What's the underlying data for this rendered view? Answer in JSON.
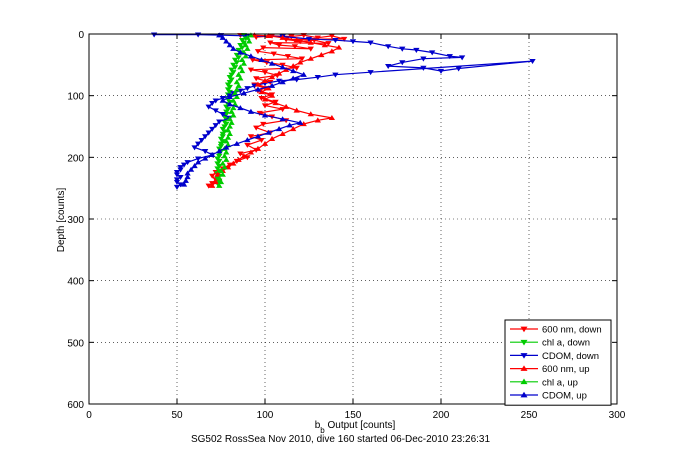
{
  "caption": "SG502 RossSea Nov 2010, dive 160 started 06-Dec-2010 23:26:31",
  "chart_data": {
    "type": "scatter",
    "title": "",
    "xlabel": "b_b Output [counts]",
    "ylabel": "Depth [counts]",
    "xlim": [
      0,
      300
    ],
    "ylim": [
      0,
      600
    ],
    "y_reversed": true,
    "xticks": [
      0,
      50,
      100,
      150,
      200,
      250,
      300
    ],
    "yticks": [
      0,
      100,
      200,
      300,
      400,
      500,
      600
    ],
    "grid": true,
    "grid_style": "dotted",
    "legend_position": "bottom-right",
    "series": [
      {
        "name": "600 nm, down",
        "color": "#ff0000",
        "marker": "triangle-down",
        "connected": true,
        "points": [
          [
            86,
            2
          ],
          [
            95,
            5
          ],
          [
            104,
            3
          ],
          [
            115,
            4
          ],
          [
            122,
            2
          ],
          [
            130,
            6
          ],
          [
            138,
            3
          ],
          [
            145,
            8
          ],
          [
            112,
            9
          ],
          [
            120,
            12
          ],
          [
            128,
            10
          ],
          [
            136,
            15
          ],
          [
            103,
            14
          ],
          [
            108,
            18
          ],
          [
            117,
            20
          ],
          [
            126,
            24
          ],
          [
            99,
            22
          ],
          [
            96,
            28
          ],
          [
            105,
            32
          ],
          [
            113,
            36
          ],
          [
            121,
            40
          ],
          [
            93,
            42
          ],
          [
            101,
            46
          ],
          [
            110,
            50
          ],
          [
            118,
            55
          ],
          [
            92,
            58
          ],
          [
            100,
            62
          ],
          [
            107,
            67
          ],
          [
            95,
            72
          ],
          [
            103,
            78
          ],
          [
            94,
            82
          ],
          [
            100,
            88
          ],
          [
            96,
            92
          ],
          [
            104,
            98
          ],
          [
            98,
            104
          ],
          [
            106,
            110
          ],
          [
            100,
            116
          ],
          [
            110,
            122
          ],
          [
            97,
            128
          ],
          [
            104,
            134
          ],
          [
            112,
            140
          ],
          [
            99,
            146
          ],
          [
            95,
            152
          ],
          [
            103,
            160
          ],
          [
            92,
            166
          ],
          [
            98,
            172
          ],
          [
            90,
            180
          ],
          [
            95,
            188
          ],
          [
            86,
            194
          ],
          [
            90,
            200
          ],
          [
            84,
            206
          ],
          [
            80,
            212
          ],
          [
            76,
            218
          ],
          [
            72,
            224
          ],
          [
            70,
            230
          ],
          [
            72,
            236
          ],
          [
            70,
            242
          ],
          [
            68,
            246
          ]
        ]
      },
      {
        "name": "chl a, down",
        "color": "#00cc00",
        "marker": "triangle-down",
        "connected": false,
        "points": [
          [
            88,
            2
          ],
          [
            89,
            6
          ],
          [
            87,
            10
          ],
          [
            88,
            14
          ],
          [
            86,
            18
          ],
          [
            87,
            22
          ],
          [
            85,
            26
          ],
          [
            86,
            30
          ],
          [
            84,
            34
          ],
          [
            85,
            38
          ],
          [
            83,
            42
          ],
          [
            84,
            46
          ],
          [
            82,
            50
          ],
          [
            83,
            54
          ],
          [
            81,
            58
          ],
          [
            82,
            62
          ],
          [
            81,
            66
          ],
          [
            80,
            70
          ],
          [
            81,
            74
          ],
          [
            80,
            78
          ],
          [
            79,
            82
          ],
          [
            80,
            86
          ],
          [
            79,
            90
          ],
          [
            80,
            94
          ],
          [
            79,
            98
          ],
          [
            80,
            102
          ],
          [
            79,
            106
          ],
          [
            80,
            110
          ],
          [
            79,
            114
          ],
          [
            78,
            118
          ],
          [
            79,
            122
          ],
          [
            78,
            126
          ],
          [
            78,
            130
          ],
          [
            77,
            134
          ],
          [
            78,
            138
          ],
          [
            77,
            142
          ],
          [
            78,
            146
          ],
          [
            77,
            150
          ],
          [
            76,
            154
          ],
          [
            77,
            158
          ],
          [
            76,
            162
          ],
          [
            76,
            166
          ],
          [
            75,
            170
          ],
          [
            76,
            174
          ],
          [
            75,
            178
          ],
          [
            75,
            182
          ],
          [
            74,
            186
          ],
          [
            75,
            190
          ],
          [
            74,
            194
          ],
          [
            74,
            198
          ],
          [
            73,
            202
          ],
          [
            74,
            206
          ],
          [
            73,
            210
          ],
          [
            74,
            214
          ],
          [
            73,
            218
          ],
          [
            74,
            222
          ],
          [
            73,
            226
          ],
          [
            74,
            230
          ],
          [
            73,
            234
          ],
          [
            74,
            238
          ],
          [
            73,
            242
          ]
        ]
      },
      {
        "name": "CDOM, down",
        "color": "#0000cc",
        "marker": "triangle-down",
        "connected": true,
        "points": [
          [
            37,
            1
          ],
          [
            62,
            1
          ],
          [
            75,
            2
          ],
          [
            90,
            3
          ],
          [
            110,
            4
          ],
          [
            125,
            8
          ],
          [
            140,
            10
          ],
          [
            150,
            12
          ],
          [
            160,
            14
          ],
          [
            170,
            20
          ],
          [
            178,
            24
          ],
          [
            186,
            26
          ],
          [
            195,
            30
          ],
          [
            205,
            36
          ],
          [
            212,
            38
          ],
          [
            190,
            40
          ],
          [
            178,
            46
          ],
          [
            170,
            52
          ],
          [
            190,
            55
          ],
          [
            200,
            60
          ],
          [
            210,
            56
          ],
          [
            252,
            44
          ],
          [
            160,
            62
          ],
          [
            140,
            66
          ],
          [
            130,
            70
          ],
          [
            118,
            74
          ],
          [
            108,
            76
          ],
          [
            100,
            80
          ],
          [
            94,
            84
          ],
          [
            90,
            88
          ],
          [
            86,
            92
          ],
          [
            82,
            96
          ],
          [
            80,
            100
          ],
          [
            76,
            104
          ],
          [
            72,
            108
          ],
          [
            70,
            112
          ],
          [
            68,
            118
          ],
          [
            72,
            124
          ],
          [
            76,
            130
          ],
          [
            80,
            136
          ],
          [
            74,
            142
          ],
          [
            72,
            148
          ],
          [
            70,
            154
          ],
          [
            68,
            160
          ],
          [
            66,
            166
          ],
          [
            64,
            172
          ],
          [
            62,
            178
          ],
          [
            60,
            184
          ],
          [
            66,
            190
          ],
          [
            70,
            196
          ],
          [
            62,
            202
          ],
          [
            56,
            208
          ],
          [
            54,
            212
          ],
          [
            52,
            216
          ],
          [
            52,
            220
          ],
          [
            50,
            224
          ],
          [
            50,
            228
          ],
          [
            52,
            232
          ],
          [
            50,
            236
          ],
          [
            50,
            240
          ],
          [
            52,
            244
          ],
          [
            50,
            248
          ]
        ]
      },
      {
        "name": "600 nm, up",
        "color": "#ff0000",
        "marker": "triangle-up",
        "connected": true,
        "points": [
          [
            70,
            246
          ],
          [
            72,
            240
          ],
          [
            74,
            234
          ],
          [
            73,
            228
          ],
          [
            76,
            222
          ],
          [
            79,
            216
          ],
          [
            82,
            210
          ],
          [
            85,
            204
          ],
          [
            88,
            198
          ],
          [
            92,
            192
          ],
          [
            96,
            186
          ],
          [
            100,
            178
          ],
          [
            104,
            170
          ],
          [
            110,
            162
          ],
          [
            116,
            154
          ],
          [
            122,
            146
          ],
          [
            130,
            140
          ],
          [
            138,
            136
          ],
          [
            126,
            130
          ],
          [
            118,
            124
          ],
          [
            112,
            118
          ],
          [
            106,
            112
          ],
          [
            100,
            106
          ],
          [
            104,
            100
          ],
          [
            98,
            94
          ],
          [
            102,
            88
          ],
          [
            96,
            82
          ],
          [
            100,
            76
          ],
          [
            104,
            70
          ],
          [
            108,
            64
          ],
          [
            112,
            58
          ],
          [
            116,
            52
          ],
          [
            120,
            46
          ],
          [
            126,
            40
          ],
          [
            132,
            34
          ],
          [
            138,
            28
          ],
          [
            142,
            22
          ],
          [
            134,
            18
          ],
          [
            126,
            14
          ],
          [
            118,
            10
          ],
          [
            110,
            6
          ],
          [
            102,
            3
          ],
          [
            94,
            2
          ]
        ]
      },
      {
        "name": "chl a, up",
        "color": "#00cc00",
        "marker": "triangle-up",
        "connected": false,
        "points": [
          [
            74,
            246
          ],
          [
            75,
            240
          ],
          [
            74,
            234
          ],
          [
            76,
            228
          ],
          [
            75,
            222
          ],
          [
            77,
            216
          ],
          [
            76,
            210
          ],
          [
            78,
            204
          ],
          [
            77,
            198
          ],
          [
            78,
            192
          ],
          [
            77,
            186
          ],
          [
            79,
            180
          ],
          [
            78,
            174
          ],
          [
            79,
            168
          ],
          [
            80,
            162
          ],
          [
            79,
            156
          ],
          [
            80,
            150
          ],
          [
            81,
            144
          ],
          [
            80,
            138
          ],
          [
            82,
            132
          ],
          [
            81,
            126
          ],
          [
            82,
            120
          ],
          [
            83,
            114
          ],
          [
            82,
            108
          ],
          [
            84,
            102
          ],
          [
            83,
            96
          ],
          [
            84,
            90
          ],
          [
            85,
            84
          ],
          [
            84,
            78
          ],
          [
            86,
            72
          ],
          [
            85,
            66
          ],
          [
            87,
            60
          ],
          [
            86,
            54
          ],
          [
            88,
            48
          ],
          [
            87,
            42
          ],
          [
            89,
            36
          ],
          [
            88,
            30
          ],
          [
            90,
            24
          ],
          [
            89,
            18
          ],
          [
            91,
            12
          ],
          [
            90,
            6
          ],
          [
            92,
            2
          ]
        ]
      },
      {
        "name": "CDOM, up",
        "color": "#0000cc",
        "marker": "triangle-up",
        "connected": true,
        "points": [
          [
            54,
            244
          ],
          [
            55,
            238
          ],
          [
            56,
            232
          ],
          [
            56,
            226
          ],
          [
            58,
            220
          ],
          [
            60,
            214
          ],
          [
            62,
            208
          ],
          [
            66,
            202
          ],
          [
            70,
            196
          ],
          [
            74,
            190
          ],
          [
            78,
            184
          ],
          [
            84,
            178
          ],
          [
            90,
            172
          ],
          [
            96,
            166
          ],
          [
            102,
            160
          ],
          [
            108,
            154
          ],
          [
            114,
            148
          ],
          [
            120,
            144
          ],
          [
            110,
            138
          ],
          [
            100,
            132
          ],
          [
            92,
            126
          ],
          [
            86,
            120
          ],
          [
            80,
            114
          ],
          [
            76,
            108
          ],
          [
            80,
            102
          ],
          [
            88,
            96
          ],
          [
            96,
            90
          ],
          [
            104,
            84
          ],
          [
            110,
            78
          ],
          [
            116,
            72
          ],
          [
            122,
            66
          ],
          [
            116,
            60
          ],
          [
            110,
            54
          ],
          [
            104,
            48
          ],
          [
            98,
            42
          ],
          [
            92,
            36
          ],
          [
            86,
            30
          ],
          [
            82,
            24
          ],
          [
            80,
            18
          ],
          [
            78,
            12
          ],
          [
            76,
            6
          ],
          [
            74,
            2
          ]
        ]
      }
    ]
  }
}
